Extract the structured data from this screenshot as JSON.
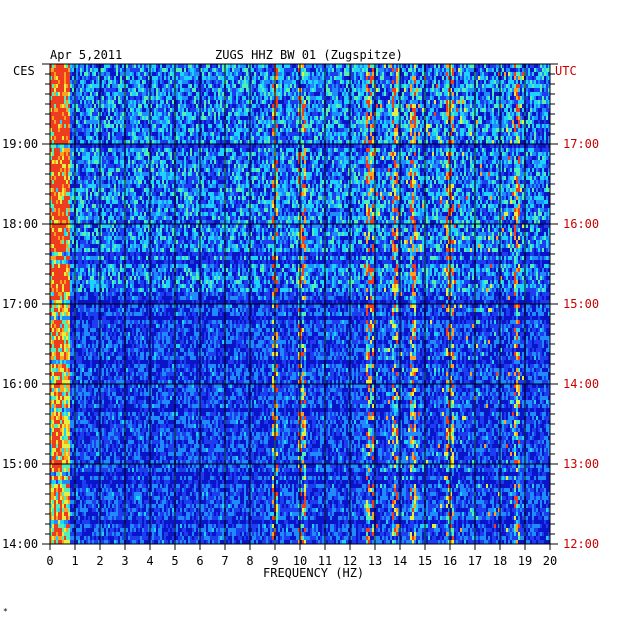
{
  "header": {
    "date": "Apr 5,2011",
    "station": "ZUGS HHZ BW 01 (Zugspitze)",
    "left_zone": "CES",
    "right_zone": "UTC"
  },
  "colors": {
    "utc_label": "#cc0000",
    "background": "#0a14c8",
    "grid": "#000000"
  },
  "chart_data": {
    "type": "heatmap",
    "title": "ZUGS HHZ BW 01 (Zugspitze)",
    "date": "Apr 5,2011",
    "xlabel": "FREQUENCY (HZ)",
    "xlim": [
      0,
      20
    ],
    "x_ticks": [
      "0",
      "1",
      "2",
      "3",
      "4",
      "5",
      "6",
      "7",
      "8",
      "9",
      "10",
      "11",
      "12",
      "13",
      "14",
      "15",
      "16",
      "17",
      "18",
      "19",
      "20"
    ],
    "y_left_label": "CES",
    "y_right_label": "UTC",
    "y_left_ticks": [
      "19:00",
      "18:00",
      "17:00",
      "16:00",
      "15:00",
      "14:00"
    ],
    "y_right_ticks": [
      "17:00",
      "16:00",
      "15:00",
      "14:00",
      "13:00",
      "12:00"
    ],
    "colormap": [
      "#0a14c8",
      "#1e3cf0",
      "#1e8cff",
      "#1ed2ff",
      "#50f0b4",
      "#e6f03c",
      "#ffa01e",
      "#f03c1e"
    ],
    "hot_bands_hz": [
      0.3,
      9.0,
      10.1,
      12.8,
      13.8,
      14.5,
      16.0,
      18.7
    ],
    "grid": true
  },
  "footer": {
    "mark": "*"
  }
}
